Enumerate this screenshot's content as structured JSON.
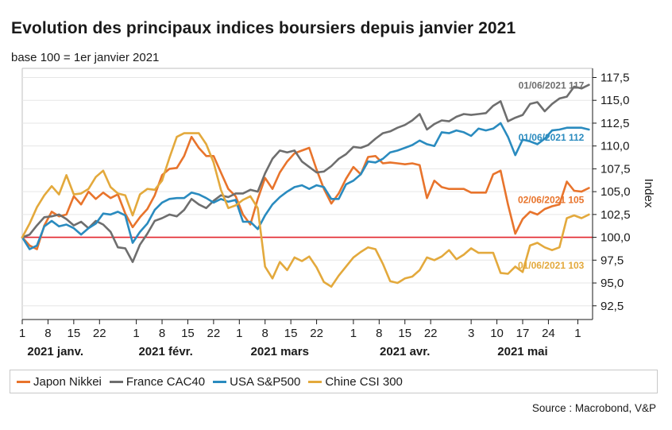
{
  "title": "Evolution des principaux indices boursiers depuis janvier 2021",
  "subtitle": "base 100 = 1er janvier 2021",
  "source": "Source : Macrobond, V&P",
  "chart_data": {
    "type": "line",
    "ylabel": "Index",
    "ylim": [
      91,
      118.5
    ],
    "xlim": [
      0,
      155
    ],
    "y_ticks": [
      92.5,
      95.0,
      97.5,
      100.0,
      102.5,
      105.0,
      107.5,
      110.0,
      112.5,
      115.0,
      117.5
    ],
    "y_tick_labels": [
      "92,5",
      "95,0",
      "97,5",
      "100,0",
      "102,5",
      "105,0",
      "107,5",
      "110,0",
      "112,5",
      "115,0",
      "117,5"
    ],
    "x_ticks": [
      {
        "label": "1",
        "x": 0
      },
      {
        "label": "8",
        "x": 7
      },
      {
        "label": "15",
        "x": 14
      },
      {
        "label": "22",
        "x": 21
      },
      {
        "label": "1",
        "x": 31
      },
      {
        "label": "8",
        "x": 38
      },
      {
        "label": "15",
        "x": 45
      },
      {
        "label": "22",
        "x": 52
      },
      {
        "label": "1",
        "x": 59
      },
      {
        "label": "8",
        "x": 66
      },
      {
        "label": "15",
        "x": 73
      },
      {
        "label": "22",
        "x": 80
      },
      {
        "label": "1",
        "x": 90
      },
      {
        "label": "8",
        "x": 97
      },
      {
        "label": "15",
        "x": 104
      },
      {
        "label": "22",
        "x": 111
      },
      {
        "label": "3",
        "x": 122
      },
      {
        "label": "10",
        "x": 129
      },
      {
        "label": "17",
        "x": 136
      },
      {
        "label": "24",
        "x": 143
      },
      {
        "label": "1",
        "x": 151
      }
    ],
    "months": [
      {
        "label": "2021 janv.",
        "x": 9
      },
      {
        "label": "2021 févr.",
        "x": 39
      },
      {
        "label": "2021 mars",
        "x": 70
      },
      {
        "label": "2021 avr.",
        "x": 104
      },
      {
        "label": "2021 mai",
        "x": 136
      }
    ],
    "reference_line": {
      "y": 100.0,
      "color": "#e3262d"
    },
    "series": [
      {
        "name": "Japon Nikkei",
        "color": "#e8742c",
        "x": [
          0,
          2,
          4,
          6,
          8,
          10,
          12,
          14,
          16,
          18,
          20,
          22,
          24,
          26,
          28,
          30,
          32,
          34,
          36,
          38,
          40,
          42,
          44,
          46,
          48,
          50,
          52,
          54,
          56,
          58,
          60,
          62,
          64,
          66,
          68,
          70,
          72,
          74,
          76,
          78,
          80,
          82,
          84,
          86,
          88,
          90,
          92,
          94,
          96,
          98,
          100,
          102,
          104,
          106,
          108,
          110,
          112,
          114,
          116,
          118,
          120,
          122,
          124,
          126,
          128,
          130,
          132,
          134,
          136,
          138,
          140,
          142,
          144,
          146,
          148,
          150,
          152,
          154
        ],
        "y": [
          100,
          99.1,
          98.7,
          101.3,
          102.8,
          102.3,
          102.5,
          104.5,
          103.6,
          105,
          104.2,
          104.9,
          104.3,
          104.7,
          102.6,
          101.1,
          102.2,
          103.1,
          104.6,
          106.8,
          107.5,
          107.6,
          108.9,
          111,
          109.8,
          108.9,
          108.9,
          107.1,
          105.3,
          104.5,
          102.5,
          101.4,
          104.2,
          106.5,
          105.3,
          107.1,
          108.3,
          109.2,
          109.5,
          109.8,
          107.4,
          105.3,
          103.7,
          104.8,
          106.4,
          107.7,
          106.9,
          108.8,
          108.9,
          108.1,
          108.2,
          108.1,
          108.0,
          108.1,
          107.9,
          104.3,
          106.2,
          105.5,
          105.3,
          105.3,
          105.3,
          104.9,
          104.9,
          104.9,
          106.9,
          107.3,
          103.6,
          100.4,
          102.0,
          102.8,
          102.5,
          103.1,
          103.4,
          103.6,
          106.1,
          105.1,
          105.0,
          105.4
        ],
        "end_label": "02/06/2021 105",
        "end_value": 105
      },
      {
        "name": "France CAC40",
        "color": "#6e6e6e",
        "x": [
          0,
          2,
          4,
          6,
          8,
          10,
          12,
          14,
          16,
          18,
          20,
          22,
          24,
          26,
          28,
          30,
          32,
          34,
          36,
          38,
          40,
          42,
          44,
          46,
          48,
          50,
          52,
          54,
          56,
          58,
          60,
          62,
          64,
          66,
          68,
          70,
          72,
          74,
          76,
          78,
          80,
          82,
          84,
          86,
          88,
          90,
          92,
          94,
          96,
          98,
          100,
          102,
          104,
          106,
          108,
          110,
          112,
          114,
          116,
          118,
          120,
          122,
          124,
          126,
          128,
          130,
          132,
          134,
          136,
          138,
          140,
          142,
          144,
          146,
          148,
          150,
          152,
          154
        ],
        "y": [
          100,
          100.3,
          101.3,
          102.2,
          102.3,
          102.5,
          102.0,
          101.3,
          101.7,
          101.0,
          101.8,
          101.4,
          100.6,
          98.9,
          98.8,
          97.3,
          99.2,
          100.4,
          101.8,
          102.1,
          102.5,
          102.3,
          103.0,
          104.2,
          103.6,
          103.2,
          104.0,
          104.6,
          104.4,
          104.8,
          104.8,
          105.2,
          105.0,
          107.0,
          108.6,
          109.5,
          109.3,
          109.5,
          108.3,
          107.7,
          107.1,
          107.2,
          107.8,
          108.6,
          109.1,
          109.9,
          109.8,
          110.1,
          110.8,
          111.4,
          111.6,
          112.0,
          112.3,
          112.8,
          113.5,
          111.8,
          112.4,
          112.8,
          112.7,
          113.2,
          113.5,
          113.4,
          113.5,
          113.6,
          114.4,
          114.9,
          112.7,
          113.1,
          113.4,
          114.6,
          114.8,
          113.8,
          114.6,
          115.2,
          115.4,
          116.5,
          116.3,
          116.7
        ],
        "end_label": "01/06/2021 117",
        "end_value": 117
      },
      {
        "name": "USA S&P500",
        "color": "#2a8bbf",
        "x": [
          0,
          2,
          4,
          6,
          8,
          10,
          12,
          14,
          16,
          18,
          20,
          22,
          24,
          26,
          28,
          30,
          32,
          34,
          36,
          38,
          40,
          42,
          44,
          46,
          48,
          50,
          52,
          54,
          56,
          58,
          60,
          62,
          64,
          66,
          68,
          70,
          72,
          74,
          76,
          78,
          80,
          82,
          84,
          86,
          88,
          90,
          92,
          94,
          96,
          98,
          100,
          102,
          104,
          106,
          108,
          110,
          112,
          114,
          116,
          118,
          120,
          122,
          124,
          126,
          128,
          130,
          132,
          134,
          136,
          138,
          140,
          142,
          144,
          146,
          148,
          150,
          152,
          154
        ],
        "y": [
          100,
          98.7,
          99.1,
          101.2,
          101.8,
          101.2,
          101.4,
          101.0,
          100.3,
          101.0,
          101.5,
          102.6,
          102.5,
          102.8,
          102.4,
          99.4,
          100.6,
          101.5,
          103.0,
          103.8,
          104.2,
          104.3,
          104.3,
          104.9,
          104.7,
          104.3,
          103.8,
          104.2,
          103.9,
          104.1,
          101.7,
          101.7,
          100.9,
          102.4,
          103.6,
          104.4,
          105.0,
          105.5,
          105.7,
          105.3,
          105.7,
          105.5,
          104.2,
          104.2,
          105.8,
          106.2,
          106.9,
          108.3,
          108.2,
          108.6,
          109.3,
          109.5,
          109.8,
          110.1,
          110.6,
          110.2,
          110.0,
          111.5,
          111.4,
          111.7,
          111.5,
          111.1,
          111.9,
          111.7,
          111.9,
          112.5,
          111.0,
          109.0,
          110.7,
          110.5,
          110.2,
          110.8,
          111.7,
          111.8,
          112.0,
          112.0,
          112.0,
          111.8
        ],
        "end_label": "01/06/2021 112",
        "end_value": 112
      },
      {
        "name": "Chine CSI 300",
        "color": "#e3a93c",
        "x": [
          0,
          2,
          4,
          6,
          8,
          10,
          12,
          14,
          16,
          18,
          20,
          22,
          24,
          26,
          28,
          30,
          32,
          34,
          36,
          38,
          40,
          42,
          44,
          46,
          48,
          50,
          52,
          54,
          56,
          58,
          60,
          62,
          64,
          66,
          68,
          70,
          72,
          74,
          76,
          78,
          80,
          82,
          84,
          86,
          88,
          90,
          92,
          94,
          96,
          98,
          100,
          102,
          104,
          106,
          108,
          110,
          112,
          114,
          116,
          118,
          120,
          122,
          124,
          126,
          128,
          130,
          132,
          134,
          136,
          138,
          140,
          142,
          144,
          146,
          148,
          150,
          152,
          154
        ],
        "y": [
          100,
          101.5,
          103.3,
          104.6,
          105.6,
          104.7,
          106.8,
          104.7,
          104.8,
          105.3,
          106.6,
          107.3,
          105.5,
          104.8,
          104.6,
          102.4,
          104.7,
          105.3,
          105.2,
          106.2,
          108.7,
          111.0,
          111.4,
          111.4,
          111.4,
          110.2,
          108.2,
          105.2,
          103.2,
          103.5,
          104.1,
          104.5,
          103.2,
          96.8,
          95.5,
          97.3,
          96.4,
          97.8,
          97.4,
          97.9,
          96.7,
          95.1,
          94.6,
          95.8,
          96.8,
          97.8,
          98.4,
          98.9,
          98.7,
          97.1,
          95.2,
          95.0,
          95.5,
          95.7,
          96.4,
          97.8,
          97.5,
          97.9,
          98.6,
          97.6,
          98.1,
          98.8,
          98.3,
          98.3,
          98.3,
          96.1,
          96.0,
          96.8,
          96.2,
          99.1,
          99.4,
          98.9,
          98.6,
          98.9,
          102.1,
          102.4,
          102.1,
          102.5
        ],
        "end_label": "01/06/2021 103",
        "end_value": 103
      }
    ]
  }
}
